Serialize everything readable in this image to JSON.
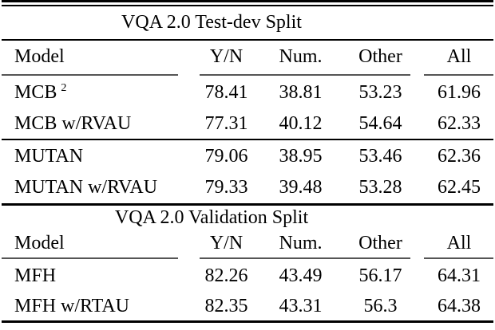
{
  "page": {
    "background": "#ffffff",
    "text_color": "#000000",
    "rule_color": "#000000",
    "cmidrule_color": "#555555"
  },
  "table": {
    "section1": {
      "title": "VQA 2.0 Test-dev Split",
      "headers": {
        "model": "Model",
        "yn": "Y/N",
        "num": "Num.",
        "other": "Other",
        "all": "All"
      },
      "rows": [
        {
          "model": "MCB",
          "sup": "2",
          "yn": "78.41",
          "num": "38.81",
          "other": "53.23",
          "all": "61.96"
        },
        {
          "model": "MCB w/RVAU",
          "sup": "",
          "yn": "77.31",
          "num": "40.12",
          "other": "54.64",
          "all": "62.33"
        },
        {
          "model": "MUTAN",
          "sup": "",
          "yn": "79.06",
          "num": "38.95",
          "other": "53.46",
          "all": "62.36"
        },
        {
          "model": "MUTAN w/RVAU",
          "sup": "",
          "yn": "79.33",
          "num": "39.48",
          "other": "53.28",
          "all": "62.45"
        }
      ]
    },
    "section2": {
      "title": "VQA 2.0 Validation Split",
      "headers": {
        "model": "Model",
        "yn": "Y/N",
        "num": "Num.",
        "other": "Other",
        "all": "All"
      },
      "rows": [
        {
          "model": "MFH",
          "sup": "",
          "yn": "82.26",
          "num": "43.49",
          "other": "56.17",
          "all": "64.31"
        },
        {
          "model": "MFH w/RTAU",
          "sup": "",
          "yn": "82.35",
          "num": "43.31",
          "other": "56.3",
          "all": "64.38"
        }
      ]
    }
  },
  "chart_data": {
    "type": "table",
    "tables": [
      {
        "title": "VQA 2.0 Test-dev Split",
        "columns": [
          "Model",
          "Y/N",
          "Num.",
          "Other",
          "All"
        ],
        "rows": [
          [
            "MCB^2",
            "78.41",
            "38.81",
            "53.23",
            "61.96"
          ],
          [
            "MCB w/RVAU",
            "77.31",
            "40.12",
            "54.64",
            "62.33"
          ],
          [
            "MUTAN",
            "79.06",
            "38.95",
            "53.46",
            "62.36"
          ],
          [
            "MUTAN w/RVAU",
            "79.33",
            "39.48",
            "53.28",
            "62.45"
          ]
        ]
      },
      {
        "title": "VQA 2.0 Validation Split",
        "columns": [
          "Model",
          "Y/N",
          "Num.",
          "Other",
          "All"
        ],
        "rows": [
          [
            "MFH",
            "82.26",
            "43.49",
            "56.17",
            "64.31"
          ],
          [
            "MFH w/RTAU",
            "82.35",
            "43.31",
            "56.3",
            "64.38"
          ]
        ]
      }
    ]
  }
}
